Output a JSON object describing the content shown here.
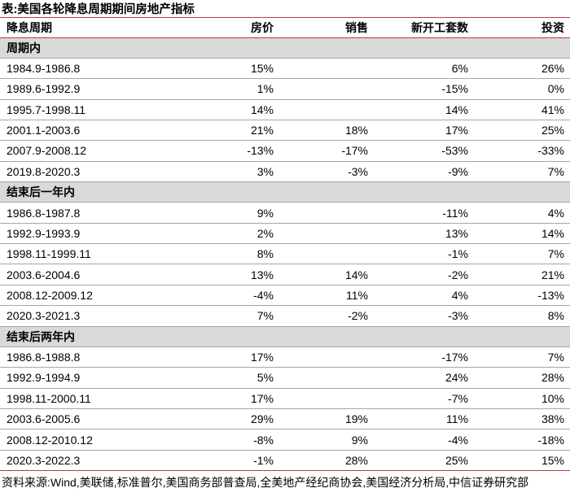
{
  "title": "表:美国各轮降息周期期间房地产指标",
  "source": "资料来源:Wind,美联储,标准普尔,美国商务部普查局,全美地产经纪商协会,美国经济分析局,中信证券研究部",
  "colors": {
    "accent_line": "#bd3b3b",
    "section_bg": "#d9d9d9",
    "row_line": "#a6a6a6"
  },
  "chart_data": {
    "type": "table",
    "title": "美国各轮降息周期期间房地产指标",
    "columns": [
      "降息周期",
      "房价",
      "销售",
      "新开工套数",
      "投资"
    ],
    "sections": [
      {
        "label": "周期内",
        "rows": [
          [
            "1984.9-1986.8",
            "15%",
            "",
            "6%",
            "26%"
          ],
          [
            "1989.6-1992.9",
            "1%",
            "",
            "-15%",
            "0%"
          ],
          [
            "1995.7-1998.11",
            "14%",
            "",
            "14%",
            "41%"
          ],
          [
            "2001.1-2003.6",
            "21%",
            "18%",
            "17%",
            "25%"
          ],
          [
            "2007.9-2008.12",
            "-13%",
            "-17%",
            "-53%",
            "-33%"
          ],
          [
            "2019.8-2020.3",
            "3%",
            "-3%",
            "-9%",
            "7%"
          ]
        ]
      },
      {
        "label": "结束后一年内",
        "rows": [
          [
            "1986.8-1987.8",
            "9%",
            "",
            "-11%",
            "4%"
          ],
          [
            "1992.9-1993.9",
            "2%",
            "",
            "13%",
            "14%"
          ],
          [
            "1998.11-1999.11",
            "8%",
            "",
            "-1%",
            "7%"
          ],
          [
            "2003.6-2004.6",
            "13%",
            "14%",
            "-2%",
            "21%"
          ],
          [
            "2008.12-2009.12",
            "-4%",
            "11%",
            "4%",
            "-13%"
          ],
          [
            "2020.3-2021.3",
            "7%",
            "-2%",
            "-3%",
            "8%"
          ]
        ]
      },
      {
        "label": "结束后两年内",
        "rows": [
          [
            "1986.8-1988.8",
            "17%",
            "",
            "-17%",
            "7%"
          ],
          [
            "1992.9-1994.9",
            "5%",
            "",
            "24%",
            "28%"
          ],
          [
            "1998.11-2000.11",
            "17%",
            "",
            "-7%",
            "10%"
          ],
          [
            "2003.6-2005.6",
            "29%",
            "19%",
            "11%",
            "38%"
          ],
          [
            "2008.12-2010.12",
            "-8%",
            "9%",
            "-4%",
            "-18%"
          ],
          [
            "2020.3-2022.3",
            "-1%",
            "28%",
            "25%",
            "15%"
          ]
        ]
      }
    ]
  }
}
